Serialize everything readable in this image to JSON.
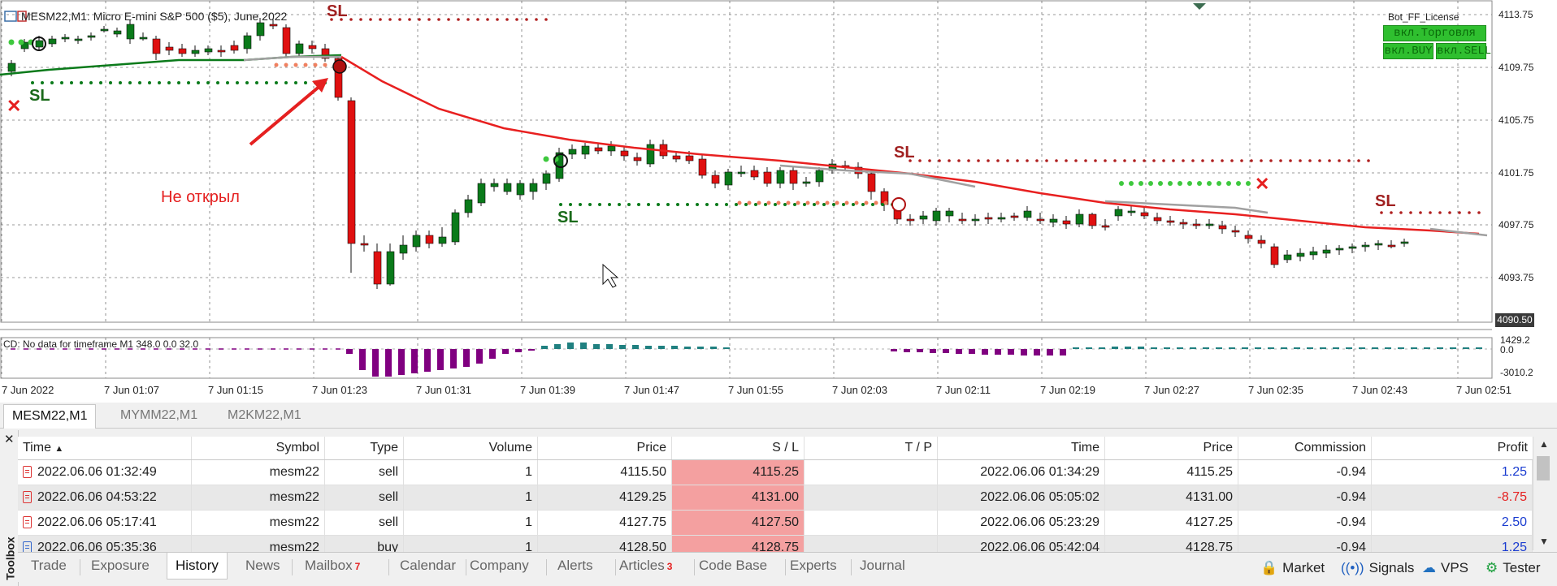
{
  "chart": {
    "title": "MESM22,M1: Micro E-mini S&P 500 ($5), June 2022",
    "bot_label": "Bot_FF_License",
    "bot_buttons": [
      "вкл.Торговля",
      "вкл.BUY",
      "вкл.SELL"
    ],
    "annotation": "Не открыл",
    "sl_label": "SL",
    "cd_label": "CD: No data for timeframe M1 348.0 0.0 32.0",
    "price_labels": [
      "4113.75",
      "4109.75",
      "4105.75",
      "4101.75",
      "4097.75",
      "4093.75"
    ],
    "current_price": "4090.50",
    "sub_labels": [
      "1429.2",
      "0.0",
      "-3010.2"
    ],
    "time_labels": [
      "7 Jun 2022",
      "7 Jun 01:07",
      "7 Jun 01:15",
      "7 Jun 01:23",
      "7 Jun 01:31",
      "7 Jun 01:39",
      "7 Jun 01:47",
      "7 Jun 01:55",
      "7 Jun 02:03",
      "7 Jun 02:11",
      "7 Jun 02:19",
      "7 Jun 02:27",
      "7 Jun 02:35",
      "7 Jun 02:43",
      "7 Jun 02:51"
    ],
    "colors": {
      "bull": "#0a7a1a",
      "bear": "#e01010",
      "ma_red": "#e82020",
      "ma_grey": "#a0a0a0",
      "histo_neg": "#800080",
      "histo_pos": "#208080"
    }
  },
  "symbol_tabs": [
    "MESM22,M1",
    "MYMM22,M1",
    "M2KM22,M1"
  ],
  "toolbox": {
    "title": "Toolbox",
    "columns": [
      "Time",
      "Symbol",
      "Type",
      "Volume",
      "Price",
      "S / L",
      "T / P",
      "Time",
      "Price",
      "Commission",
      "Profit"
    ],
    "rows": [
      {
        "time": "2022.06.06 01:32:49",
        "symbol": "mesm22",
        "type": "sell",
        "volume": "1",
        "price": "4115.50",
        "sl": "4115.25",
        "tp": "",
        "close_time": "2022.06.06 01:34:29",
        "close_price": "4115.25",
        "commission": "-0.94",
        "profit": "1.25",
        "profit_color": "#1a3cd0"
      },
      {
        "time": "2022.06.06 04:53:22",
        "symbol": "mesm22",
        "type": "sell",
        "volume": "1",
        "price": "4129.25",
        "sl": "4131.00",
        "tp": "",
        "close_time": "2022.06.06 05:05:02",
        "close_price": "4131.00",
        "commission": "-0.94",
        "profit": "-8.75",
        "profit_color": "#e52020"
      },
      {
        "time": "2022.06.06 05:17:41",
        "symbol": "mesm22",
        "type": "sell",
        "volume": "1",
        "price": "4127.75",
        "sl": "4127.50",
        "tp": "",
        "close_time": "2022.06.06 05:23:29",
        "close_price": "4127.25",
        "commission": "-0.94",
        "profit": "2.50",
        "profit_color": "#1a3cd0"
      },
      {
        "time": "2022.06.06 05:35:36",
        "symbol": "mesm22",
        "type": "buy",
        "volume": "1",
        "price": "4128.50",
        "sl": "4128.75",
        "tp": "",
        "close_time": "2022.06.06 05:42:04",
        "close_price": "4128.75",
        "commission": "-0.94",
        "profit": "1.25",
        "profit_color": "#1a3cd0"
      }
    ]
  },
  "bottom_tabs": [
    {
      "label": "Trade"
    },
    {
      "label": "Exposure"
    },
    {
      "label": "History",
      "active": true
    },
    {
      "label": "News"
    },
    {
      "label": "Mailbox",
      "badge": "7"
    },
    {
      "label": "Calendar"
    },
    {
      "label": "Company"
    },
    {
      "label": "Alerts"
    },
    {
      "label": "Articles",
      "badge": "3"
    },
    {
      "label": "Code Base"
    },
    {
      "label": "Experts"
    },
    {
      "label": "Journal"
    }
  ],
  "right_tools": [
    "Market",
    "Signals",
    "VPS",
    "Tester"
  ]
}
